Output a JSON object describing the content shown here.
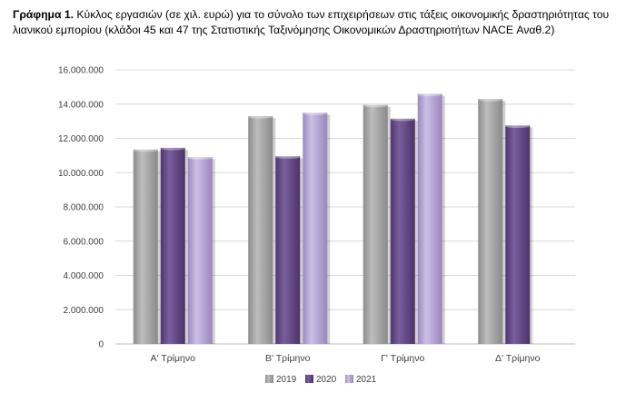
{
  "caption": {
    "label": "Γράφημα 1.",
    "text": "Κύκλος εργασιών (σε χιλ. ευρώ) για το σύνολο των επιχειρήσεων στις τάξεις οικονομικής δραστηριότητας του λιανικού εμπορίου (κλάδοι 45 και 47 της Στατιστικής Ταξινόμησης Οικονομικών Δραστηριοτήτων NACE Αναθ.2)"
  },
  "chart_data": {
    "type": "bar",
    "title": "",
    "xlabel": "",
    "ylabel": "",
    "categories": [
      "Α' Τρίμηνο",
      "Β' Τρίμηνο",
      "Γ' Τρίμηνο",
      "Δ' Τρίμηνο"
    ],
    "series": [
      {
        "name": "2019",
        "color": "#a6a6a6",
        "values": [
          11350000,
          13300000,
          13950000,
          14300000
        ]
      },
      {
        "name": "2020",
        "color": "#6b4f8f",
        "values": [
          11450000,
          10950000,
          13150000,
          12750000
        ]
      },
      {
        "name": "2021",
        "color": "#b9a7d6",
        "values": [
          10900000,
          13500000,
          14600000,
          null
        ]
      }
    ],
    "ylim": [
      0,
      16000000
    ],
    "yticks": [
      0,
      2000000,
      4000000,
      6000000,
      8000000,
      10000000,
      12000000,
      14000000,
      16000000
    ],
    "ytick_labels": [
      "0",
      "2.000.000",
      "4.000.000",
      "6.000.000",
      "8.000.000",
      "10.000.000",
      "12.000.000",
      "14.000.000",
      "16.000.000"
    ],
    "grid": true,
    "legend_position": "bottom"
  }
}
